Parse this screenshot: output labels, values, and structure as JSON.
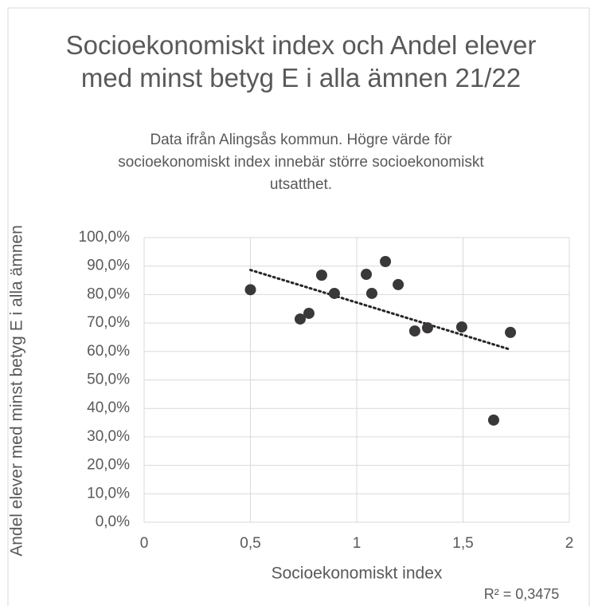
{
  "chart_data": {
    "type": "scatter",
    "title": "Socioekonomiskt index och Andel elever med minst betyg E i alla ämnen 21/22",
    "subtitle": "Data ifrån Alingsås kommun. Högre värde för socioekonomiskt index innebär större socioekonomiskt utsatthet.",
    "x_label": "Socioekonomiskt index",
    "y_label": "Andel elever med minst betyg E i alla ämnen",
    "annotation": "R² = 0,3475",
    "x": [
      0.5,
      0.734,
      0.775,
      0.835,
      0.895,
      1.045,
      1.071,
      1.135,
      1.195,
      1.273,
      1.333,
      1.494,
      1.644,
      1.723
    ],
    "values": [
      81.7,
      71.4,
      73.4,
      86.8,
      80.4,
      87.1,
      80.4,
      91.6,
      83.5,
      67.2,
      68.3,
      68.6,
      35.9,
      66.7
    ],
    "color": "#3b3838",
    "trendline": true,
    "grid": true,
    "xlim": [
      0,
      2
    ],
    "xticks": [
      0,
      {
        "value": 0.5,
        "label": "0,5"
      },
      1,
      {
        "value": 1.5,
        "label": "1,5"
      },
      2
    ],
    "ylim": [
      0,
      100
    ],
    "yticks": [
      {
        "value": 0,
        "label": "0,0%"
      },
      {
        "value": 10,
        "label": "10,0%"
      },
      {
        "value": 20,
        "label": "20,0%"
      },
      {
        "value": 30,
        "label": "30,0%"
      },
      {
        "value": 40,
        "label": "40,0%"
      },
      {
        "value": 50,
        "label": "50,0%"
      },
      {
        "value": 60,
        "label": "60,0%"
      },
      {
        "value": 70,
        "label": "70,0%"
      },
      {
        "value": 80,
        "label": "80,0%"
      },
      {
        "value": 90,
        "label": "90,0%"
      },
      {
        "value": 100,
        "label": "100,0%"
      }
    ]
  }
}
